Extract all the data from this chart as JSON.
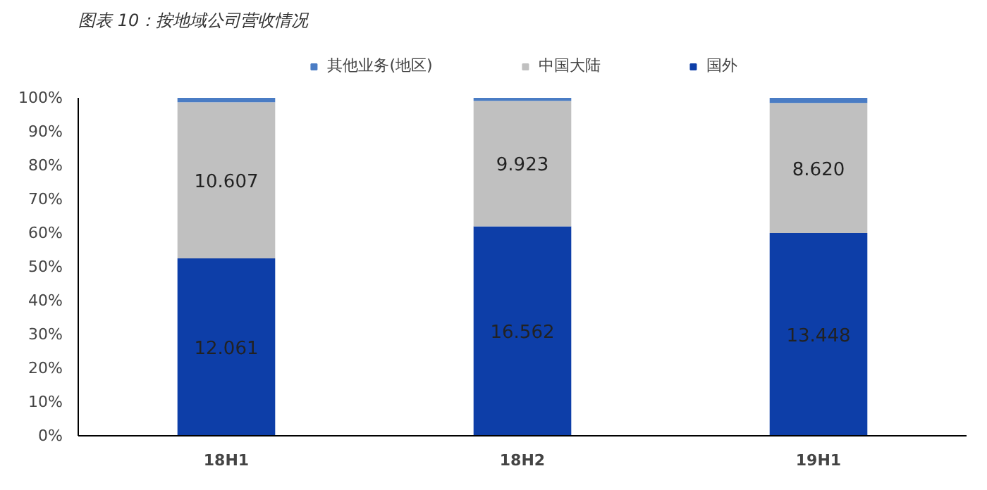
{
  "chart_data": {
    "type": "bar",
    "title": "图表 10：按地域公司营收情况",
    "categories": [
      "18H1",
      "18H2",
      "19H1"
    ],
    "stacked": true,
    "ylim": [
      0,
      100
    ],
    "yticks": [
      {
        "value": 0,
        "label": "0%"
      },
      {
        "value": 10,
        "label": "10%"
      },
      {
        "value": 20,
        "label": "20%"
      },
      {
        "value": 30,
        "label": "30%"
      },
      {
        "value": 40,
        "label": "40%"
      },
      {
        "value": 50,
        "label": "50%"
      },
      {
        "value": 60,
        "label": "60%"
      },
      {
        "value": 70,
        "label": "70%"
      },
      {
        "value": 80,
        "label": "80%"
      },
      {
        "value": 90,
        "label": "90%"
      },
      {
        "value": 100,
        "label": "100%"
      }
    ],
    "grid": false,
    "legend": "top",
    "series": [
      {
        "name": "国外",
        "color": "#0d3ea8",
        "values": [
          52.5,
          62.0,
          60.0
        ]
      },
      {
        "name": "中国大陆",
        "color": "#c0c0c0",
        "values": [
          46.2,
          37.1,
          38.5
        ]
      },
      {
        "name": "其他业务(地区)",
        "color": "#4a7cc4",
        "values": [
          1.3,
          0.9,
          1.5
        ]
      }
    ],
    "annotations": [
      "12.061",
      "16.562",
      "13.448",
      "10.607",
      "9.923",
      "8.620"
    ]
  }
}
